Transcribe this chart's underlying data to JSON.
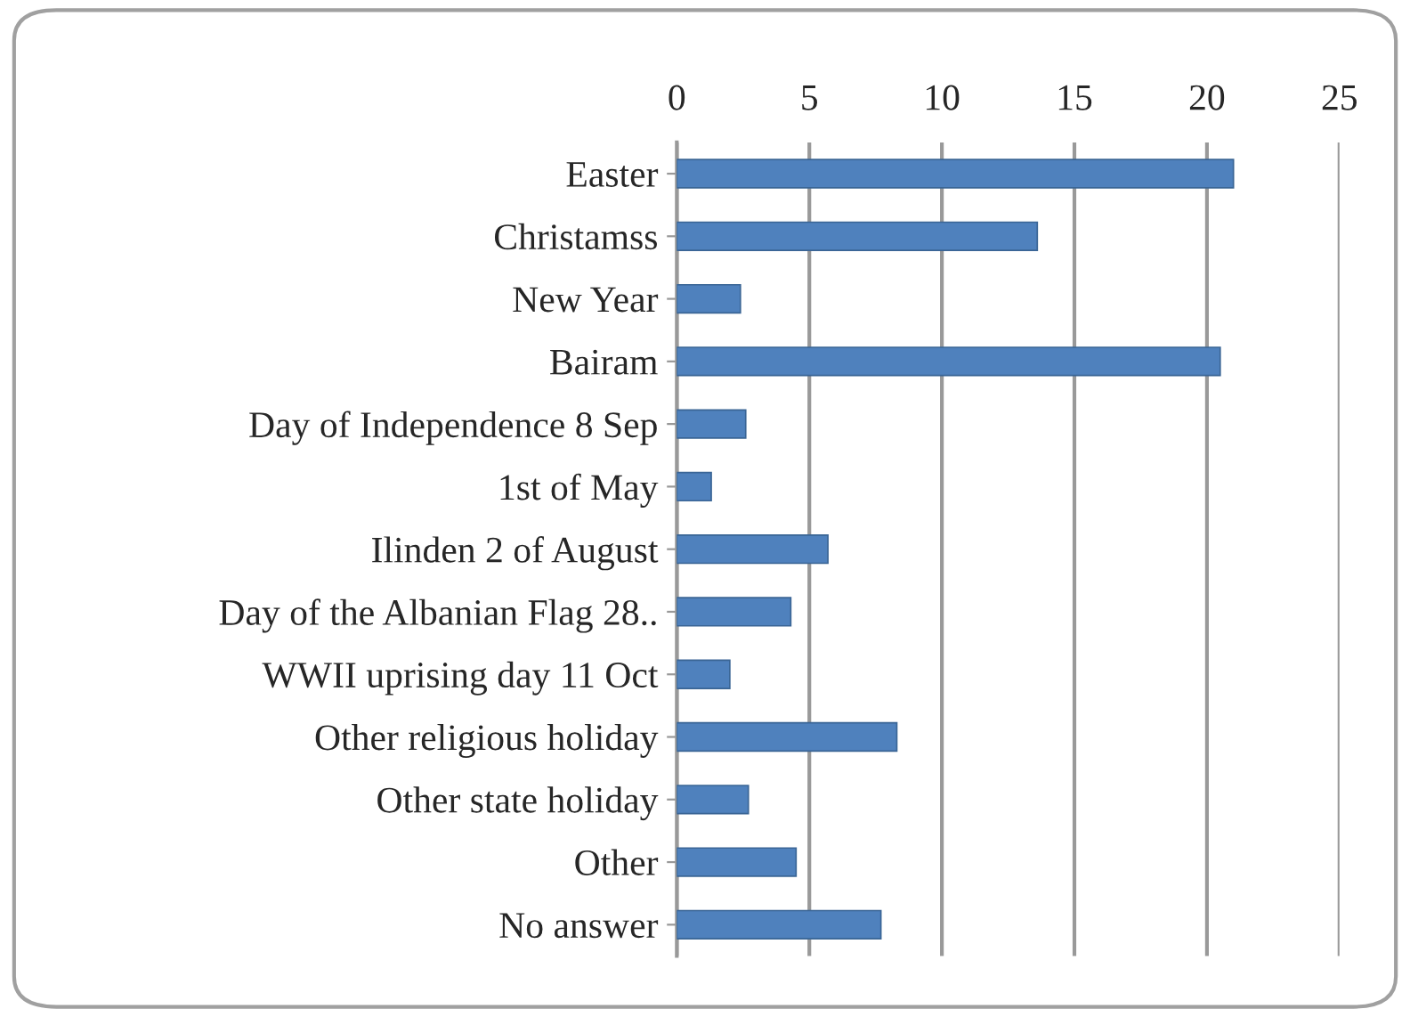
{
  "chart_data": {
    "type": "bar",
    "orientation": "horizontal",
    "categories": [
      "Easter",
      "Christamss",
      "New Year",
      "Bairam",
      "Day of Independence 8 Sep",
      "1st of May",
      "Ilinden 2 of August",
      "Day of the Albanian Flag 28..",
      "WWII uprising day 11 Oct",
      "Other religious holiday",
      "Other state holiday",
      "Other",
      "No answer"
    ],
    "values": [
      21,
      13.6,
      2.4,
      20.5,
      2.6,
      1.3,
      5.7,
      4.3,
      2,
      8.3,
      2.7,
      4.5,
      7.7
    ],
    "color": "#4f81bd",
    "xlim": [
      0,
      25
    ],
    "xticks": [
      0,
      5,
      10,
      15,
      20,
      25
    ],
    "grid": "x",
    "legend": false
  }
}
